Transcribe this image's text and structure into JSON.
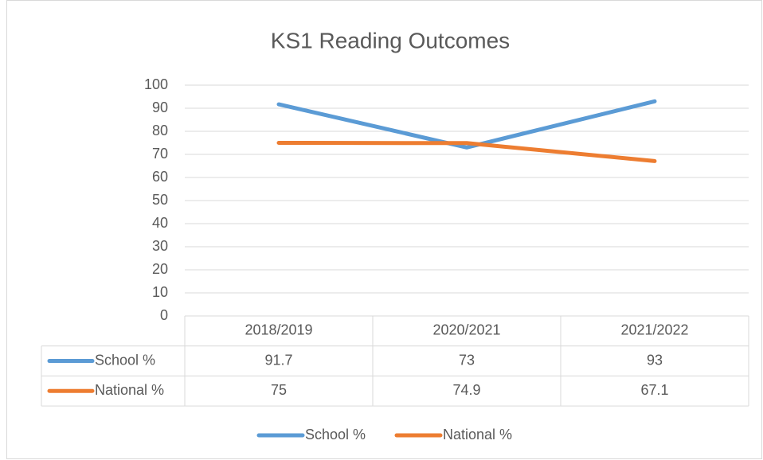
{
  "chart_data": {
    "type": "line",
    "title": "KS1 Reading Outcomes",
    "categories": [
      "2018/2019",
      "2020/2021",
      "2021/2022"
    ],
    "series": [
      {
        "name": "School %",
        "color": "#5b9bd5",
        "values": [
          91.7,
          73,
          93
        ]
      },
      {
        "name": "National %",
        "color": "#ed7d31",
        "values": [
          75,
          74.9,
          67.1
        ]
      }
    ],
    "ylim": [
      0,
      100
    ],
    "yticks": [
      0,
      10,
      20,
      30,
      40,
      50,
      60,
      70,
      80,
      90,
      100
    ],
    "grid": true,
    "data_table": true,
    "legend": "bottom"
  }
}
